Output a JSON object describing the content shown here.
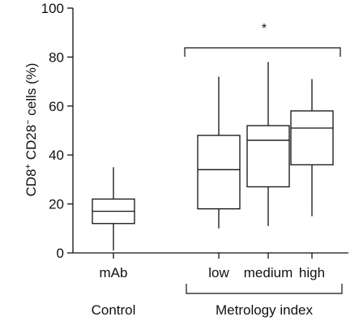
{
  "chart_data": {
    "type": "box",
    "ylabel_main": "CD8",
    "ylabel_sup1": "+",
    "ylabel_mid": " CD28",
    "ylabel_sup2": "−",
    "ylabel_end": " cells (%)",
    "ylim": [
      0,
      100
    ],
    "yticks": [
      "0",
      "20",
      "40",
      "60",
      "80",
      "100"
    ],
    "grid": false,
    "boxes": [
      {
        "label": "mAb",
        "whisker_low": 1,
        "q1": 12,
        "median": 17,
        "q3": 22,
        "whisker_high": 35
      },
      {
        "label": "low",
        "whisker_low": 10,
        "q1": 18,
        "median": 34,
        "q3": 48,
        "whisker_high": 72
      },
      {
        "label": "medium",
        "whisker_low": 11,
        "q1": 27,
        "median": 46,
        "q3": 52,
        "whisker_high": 78
      },
      {
        "label": "high",
        "whisker_low": 15,
        "q1": 36,
        "median": 51,
        "q3": 58,
        "whisker_high": 71
      }
    ],
    "groups": [
      {
        "label": "Control"
      },
      {
        "label": "Metrology index"
      }
    ],
    "significance": "*"
  }
}
